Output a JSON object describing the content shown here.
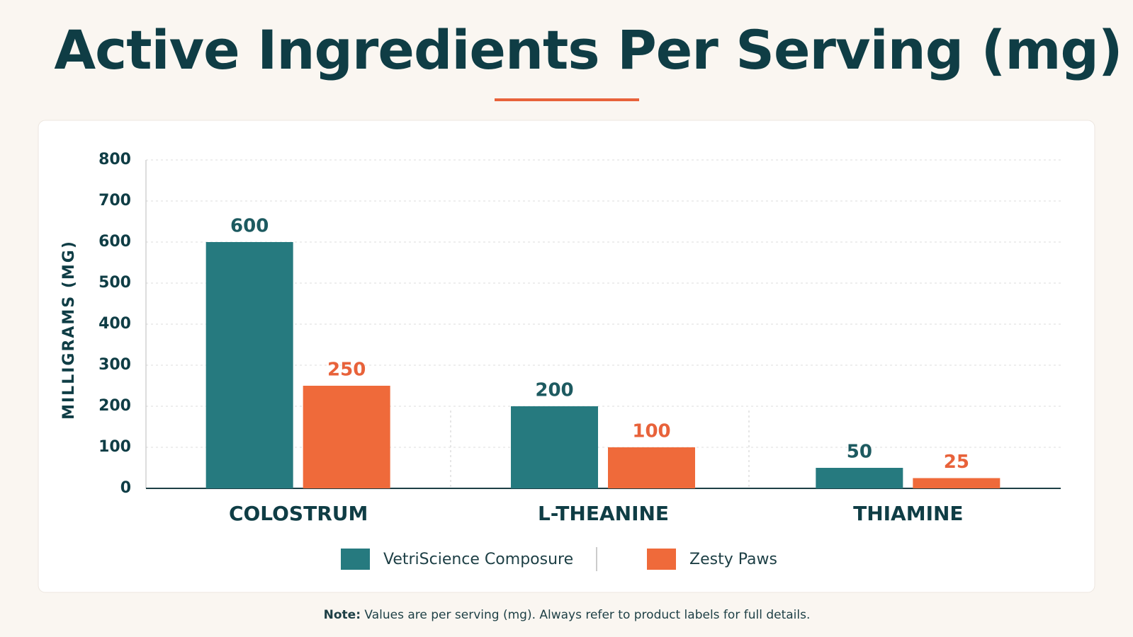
{
  "chart_data": {
    "type": "bar",
    "title": "Active Ingredients Per Serving (mg)",
    "y_label": "MILLIGRAMS (MG)",
    "categories": [
      "COLOSTRUM",
      "L-THEANINE",
      "THIAMINE"
    ],
    "series": [
      {
        "name": "VetriScience Composure",
        "color": "#267a7f",
        "label_color": "#1d5a60",
        "values": [
          600,
          200,
          50
        ]
      },
      {
        "name": "Zesty Paws",
        "color": "#ef6a3a",
        "label_color": "#e8623a",
        "values": [
          250,
          100,
          25
        ]
      }
    ],
    "ylim": [
      0,
      800
    ],
    "yticks": [
      0,
      100,
      200,
      300,
      400,
      500,
      600,
      700,
      800
    ],
    "grid": true
  },
  "note": {
    "label": "Note:",
    "text": "Values are per serving (mg). Always refer to product labels for full details."
  }
}
